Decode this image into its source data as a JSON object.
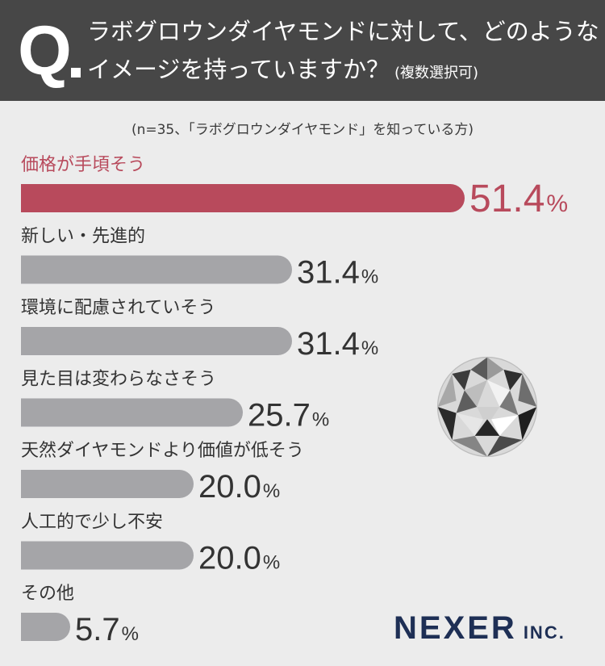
{
  "question": {
    "mark": "Q",
    "line1": "ラボグロウンダイヤモンドに対して、どのような",
    "line2": "イメージを持っていますか？",
    "note": "(複数選択可)"
  },
  "sample_note": "(n=35、「ラボグロウンダイヤモンド」を知っている方)",
  "chart_data": {
    "type": "bar",
    "orientation": "horizontal",
    "unit": "%",
    "xlim": [
      0,
      51.4
    ],
    "categories": [
      "価格が手頃そう",
      "新しい・先進的",
      "環境に配慮されていそう",
      "見た目は変わらなさそう",
      "天然ダイヤモンドより価値が低そう",
      "人工的で少し不安",
      "その他"
    ],
    "values": [
      51.4,
      31.4,
      31.4,
      25.7,
      20.0,
      20.0,
      5.7
    ],
    "value_labels": [
      "51.4",
      "31.4",
      "31.4",
      "25.7",
      "20.0",
      "20.0",
      "5.7"
    ],
    "highlight_index": 0,
    "colors": {
      "highlight": "#b84a5c",
      "default": "#a5a5a8",
      "label": "#333333"
    }
  },
  "logo": {
    "main": "NEXER",
    "sub": "INC."
  }
}
